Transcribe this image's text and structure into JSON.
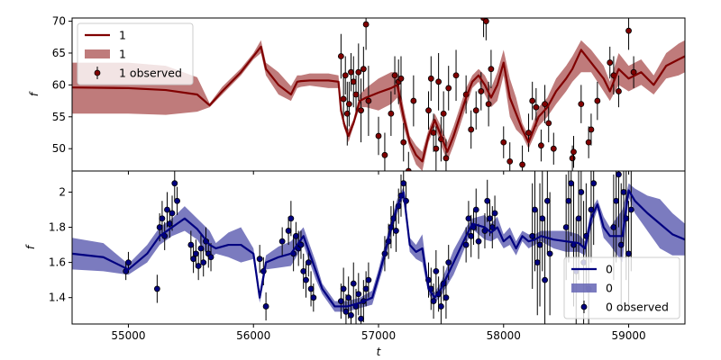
{
  "chart_data": [
    {
      "type": "line",
      "panel": "top",
      "xlabel": "",
      "ylabel": "f",
      "xlim": [
        54550,
        59450
      ],
      "ylim": [
        46.5,
        70.5
      ],
      "yticks": [
        50,
        55,
        60,
        65,
        70
      ],
      "show_xtick_labels": false,
      "legend_location": "upper left",
      "colors": {
        "line": "#800000",
        "band": "#b46464",
        "points": "#800000"
      },
      "legend": [
        {
          "kind": "line",
          "label": "1"
        },
        {
          "kind": "band",
          "label": "1"
        },
        {
          "kind": "errorbar",
          "label": "1 observed"
        }
      ],
      "model": {
        "x": [
          54550,
          55000,
          55300,
          55550,
          55650,
          55750,
          55900,
          56000,
          56060,
          56100,
          56200,
          56300,
          56350,
          56380,
          56450,
          56600,
          56680,
          56700,
          56730,
          56760,
          56800,
          56850,
          56900,
          57000,
          57100,
          57150,
          57200,
          57250,
          57300,
          57350,
          57400,
          57450,
          57500,
          57550,
          57600,
          57700,
          57750,
          57800,
          57850,
          57900,
          57950,
          58000,
          58050,
          58100,
          58150,
          58200,
          58280,
          58350,
          58420,
          58500,
          58550,
          58620,
          58700,
          58800,
          58850,
          58920,
          59000,
          59100,
          59200,
          59300,
          59400,
          59450
        ],
        "mean": [
          59.6,
          59.5,
          59.2,
          58.5,
          56.8,
          59.0,
          62.0,
          64.5,
          66.0,
          62.5,
          60.0,
          58.5,
          60.5,
          60.6,
          60.7,
          60.7,
          60.5,
          56.0,
          53.5,
          52.0,
          54.0,
          57.5,
          58.0,
          58.8,
          59.5,
          60.0,
          55.0,
          51.0,
          49.0,
          48.0,
          52.0,
          54.5,
          52.0,
          49.5,
          52.0,
          58.0,
          60.5,
          61.5,
          60.0,
          58.0,
          60.0,
          63.5,
          58.0,
          55.5,
          53.0,
          51.0,
          55.0,
          56.5,
          59.0,
          61.0,
          62.5,
          65.5,
          63.5,
          61.0,
          59.0,
          62.5,
          61.0,
          62.0,
          60.0,
          63.0,
          64.0,
          64.5
        ],
        "lower": [
          55.5,
          55.5,
          55.3,
          55.8,
          56.5,
          58.5,
          61.5,
          64.0,
          65.0,
          61.5,
          58.5,
          57.5,
          59.5,
          59.7,
          59.9,
          59.5,
          59.5,
          55.5,
          53.0,
          51.0,
          53.5,
          56.5,
          56.5,
          56.0,
          57.0,
          58.0,
          53.5,
          50.0,
          47.5,
          46.5,
          51.0,
          53.5,
          50.5,
          48.0,
          50.5,
          56.5,
          59.5,
          60.5,
          58.5,
          56.5,
          57.5,
          61.5,
          55.0,
          53.0,
          52.0,
          50.0,
          53.5,
          55.0,
          57.0,
          59.0,
          60.5,
          62.0,
          62.0,
          59.0,
          57.5,
          60.0,
          59.0,
          60.0,
          58.5,
          61.0,
          61.5,
          62.0
        ],
        "upper": [
          63.5,
          63.5,
          63.0,
          61.2,
          57.1,
          59.7,
          62.6,
          65.0,
          67.0,
          63.5,
          62.0,
          59.8,
          61.5,
          61.5,
          61.8,
          61.8,
          61.5,
          56.6,
          54.0,
          53.0,
          54.6,
          58.5,
          59.5,
          61.0,
          62.0,
          62.0,
          56.5,
          52.0,
          50.5,
          49.5,
          53.0,
          55.5,
          53.5,
          51.0,
          53.5,
          59.5,
          61.5,
          62.5,
          61.5,
          59.5,
          62.0,
          65.5,
          61.0,
          58.0,
          54.0,
          52.0,
          56.5,
          58.0,
          61.0,
          63.0,
          64.5,
          67.0,
          65.5,
          63.0,
          60.5,
          65.0,
          63.0,
          64.0,
          61.5,
          65.0,
          66.5,
          67.0
        ]
      },
      "observed": {
        "x": [
          56700,
          56720,
          56735,
          56750,
          56765,
          56780,
          56800,
          56820,
          56840,
          56860,
          56880,
          56900,
          56920,
          57000,
          57050,
          57100,
          57130,
          57160,
          57180,
          57200,
          57240,
          57280,
          57400,
          57420,
          57440,
          57460,
          57480,
          57500,
          57520,
          57540,
          57560,
          57620,
          57700,
          57740,
          57780,
          57820,
          57840,
          57860,
          57880,
          57900,
          58000,
          58050,
          58150,
          58200,
          58230,
          58260,
          58300,
          58330,
          58360,
          58400,
          58550,
          58560,
          58620,
          58680,
          58700,
          58750,
          58850,
          58880,
          58920,
          59000,
          59040
        ],
        "y": [
          64.5,
          57.8,
          61.5,
          55.5,
          57.0,
          62.0,
          60.5,
          58.5,
          62.0,
          56.0,
          62.5,
          69.5,
          57.5,
          52.0,
          49.0,
          55.5,
          61.5,
          60.5,
          61.0,
          51.0,
          46.5,
          57.5,
          56.0,
          61.0,
          52.5,
          50.0,
          60.5,
          51.5,
          55.5,
          48.5,
          59.5,
          61.5,
          58.5,
          53.0,
          56.0,
          59.0,
          70.5,
          70.0,
          57.0,
          62.5,
          51.0,
          48.0,
          47.5,
          52.5,
          57.5,
          56.5,
          50.5,
          57.0,
          54.0,
          50.0,
          48.5,
          49.5,
          57.0,
          51.0,
          53.0,
          57.5,
          63.5,
          61.5,
          59.0,
          68.5,
          62.0
        ],
        "err": [
          3.5,
          4.0,
          3.0,
          5.0,
          3.5,
          3.0,
          4.0,
          3.0,
          4.5,
          5.0,
          3.5,
          4.0,
          5.5,
          3.0,
          3.5,
          3.5,
          3.0,
          3.5,
          3.5,
          3.0,
          3.0,
          4.0,
          3.0,
          3.5,
          3.0,
          3.5,
          4.5,
          3.5,
          3.5,
          3.0,
          3.5,
          4.0,
          3.0,
          3.0,
          3.0,
          3.0,
          3.0,
          3.0,
          3.5,
          3.0,
          2.5,
          3.0,
          3.0,
          3.0,
          3.0,
          3.0,
          2.5,
          3.0,
          3.0,
          2.5,
          2.0,
          2.5,
          3.0,
          2.5,
          2.5,
          3.0,
          2.5,
          3.0,
          2.5,
          3.0,
          2.5
        ]
      }
    },
    {
      "type": "line",
      "panel": "bottom",
      "xlabel": "t",
      "ylabel": "f",
      "xlim": [
        54550,
        59450
      ],
      "ylim": [
        1.25,
        2.12
      ],
      "yticks": [
        1.4,
        1.6,
        1.8,
        2.0
      ],
      "xticks": [
        55000,
        56000,
        57000,
        58000,
        59000
      ],
      "xtick_labels": [
        "55000",
        "56000",
        "57000",
        "58000",
        "59000"
      ],
      "legend_location": "lower right",
      "colors": {
        "line": "#000080",
        "band": "#6464b4",
        "points": "#000080"
      },
      "legend": [
        {
          "kind": "line",
          "label": "0"
        },
        {
          "kind": "band",
          "label": "0"
        },
        {
          "kind": "errorbar",
          "label": "0 observed"
        }
      ],
      "model": {
        "x": [
          54550,
          54800,
          55000,
          55150,
          55250,
          55350,
          55450,
          55550,
          55650,
          55700,
          55800,
          55900,
          56000,
          56050,
          56100,
          56200,
          56300,
          56400,
          56500,
          56550,
          56650,
          56750,
          56850,
          56950,
          57000,
          57050,
          57100,
          57150,
          57200,
          57250,
          57300,
          57350,
          57400,
          57450,
          57500,
          57600,
          57700,
          57750,
          57850,
          57900,
          57950,
          58000,
          58050,
          58100,
          58150,
          58200,
          58250,
          58300,
          58400,
          58500,
          58600,
          58650,
          58700,
          58750,
          58800,
          58850,
          58950,
          59000,
          59050,
          59150,
          59250,
          59350,
          59450
        ],
        "mean": [
          1.65,
          1.63,
          1.56,
          1.65,
          1.75,
          1.8,
          1.85,
          1.79,
          1.7,
          1.68,
          1.7,
          1.7,
          1.65,
          1.4,
          1.6,
          1.63,
          1.65,
          1.75,
          1.55,
          1.45,
          1.35,
          1.35,
          1.37,
          1.4,
          1.52,
          1.65,
          1.8,
          1.92,
          2.0,
          1.7,
          1.66,
          1.68,
          1.45,
          1.4,
          1.45,
          1.6,
          1.75,
          1.82,
          1.8,
          1.77,
          1.8,
          1.72,
          1.75,
          1.68,
          1.75,
          1.72,
          1.73,
          1.75,
          1.73,
          1.72,
          1.71,
          1.68,
          1.85,
          1.93,
          1.8,
          1.75,
          1.75,
          2.01,
          1.95,
          1.88,
          1.82,
          1.76,
          1.73
        ],
        "lower": [
          1.56,
          1.55,
          1.53,
          1.6,
          1.7,
          1.75,
          1.78,
          1.73,
          1.62,
          1.65,
          1.63,
          1.6,
          1.62,
          1.37,
          1.56,
          1.57,
          1.58,
          1.7,
          1.5,
          1.42,
          1.32,
          1.32,
          1.34,
          1.36,
          1.48,
          1.6,
          1.76,
          1.88,
          1.97,
          1.66,
          1.62,
          1.6,
          1.42,
          1.37,
          1.41,
          1.53,
          1.7,
          1.79,
          1.73,
          1.72,
          1.74,
          1.68,
          1.7,
          1.64,
          1.72,
          1.68,
          1.7,
          1.72,
          1.68,
          1.66,
          1.66,
          1.64,
          1.8,
          1.9,
          1.74,
          1.7,
          1.6,
          1.97,
          1.88,
          1.78,
          1.68,
          1.64,
          1.64
        ],
        "upper": [
          1.74,
          1.71,
          1.59,
          1.7,
          1.8,
          1.85,
          1.92,
          1.85,
          1.78,
          1.71,
          1.77,
          1.8,
          1.68,
          1.43,
          1.64,
          1.69,
          1.72,
          1.8,
          1.6,
          1.48,
          1.38,
          1.38,
          1.4,
          1.44,
          1.56,
          1.7,
          1.84,
          1.96,
          2.03,
          1.74,
          1.7,
          1.76,
          1.48,
          1.43,
          1.49,
          1.67,
          1.8,
          1.85,
          1.87,
          1.82,
          1.86,
          1.76,
          1.8,
          1.72,
          1.78,
          1.76,
          1.76,
          1.78,
          1.78,
          1.78,
          1.76,
          1.72,
          1.9,
          1.96,
          1.86,
          1.8,
          1.9,
          2.05,
          2.02,
          1.98,
          1.96,
          1.88,
          1.82
        ]
      },
      "observed": {
        "x": [
          54980,
          55000,
          55230,
          55250,
          55270,
          55290,
          55310,
          55330,
          55350,
          55370,
          55390,
          55500,
          55520,
          55540,
          55560,
          55580,
          55600,
          55620,
          55640,
          55660,
          56050,
          56080,
          56100,
          56230,
          56280,
          56300,
          56320,
          56340,
          56360,
          56380,
          56400,
          56420,
          56440,
          56460,
          56480,
          56700,
          56720,
          56740,
          56760,
          56780,
          56800,
          56820,
          56840,
          56860,
          56880,
          56900,
          56920,
          57050,
          57080,
          57100,
          57120,
          57140,
          57160,
          57180,
          57200,
          57220,
          57400,
          57420,
          57440,
          57460,
          57480,
          57500,
          57520,
          57540,
          57560,
          57700,
          57720,
          57740,
          57760,
          57780,
          57800,
          57850,
          57870,
          57890,
          57910,
          57930,
          58230,
          58250,
          58270,
          58290,
          58310,
          58330,
          58350,
          58370,
          58500,
          58520,
          58540,
          58560,
          58580,
          58600,
          58620,
          58640,
          58660,
          58680,
          58700,
          58720,
          58880,
          58900,
          58920,
          58940,
          58960,
          58980,
          59000,
          59020
        ],
        "y": [
          1.55,
          1.6,
          1.45,
          1.8,
          1.85,
          1.75,
          1.9,
          1.82,
          1.88,
          2.05,
          1.95,
          1.7,
          1.62,
          1.65,
          1.58,
          1.68,
          1.6,
          1.72,
          1.65,
          1.63,
          1.62,
          1.55,
          1.35,
          1.72,
          1.78,
          1.85,
          1.65,
          1.75,
          1.68,
          1.7,
          1.55,
          1.5,
          1.6,
          1.45,
          1.4,
          1.38,
          1.45,
          1.32,
          1.4,
          1.3,
          1.48,
          1.35,
          1.42,
          1.28,
          1.38,
          1.45,
          1.5,
          1.65,
          1.72,
          1.8,
          1.85,
          1.78,
          1.92,
          1.98,
          2.05,
          1.95,
          1.5,
          1.45,
          1.38,
          1.55,
          1.42,
          1.35,
          1.48,
          1.4,
          1.6,
          1.7,
          1.85,
          1.75,
          1.8,
          1.9,
          1.72,
          1.78,
          1.95,
          1.85,
          1.8,
          1.88,
          1.75,
          1.9,
          1.6,
          1.7,
          1.85,
          1.5,
          1.95,
          1.65,
          1.8,
          1.95,
          2.05,
          1.7,
          1.55,
          1.85,
          2.0,
          1.6,
          1.75,
          1.45,
          1.9,
          2.05,
          1.8,
          1.95,
          2.1,
          1.7,
          2.0,
          1.85,
          1.65,
          1.9
        ],
        "err": [
          0.05,
          0.06,
          0.08,
          0.08,
          0.1,
          0.08,
          0.1,
          0.08,
          0.1,
          0.1,
          0.08,
          0.08,
          0.08,
          0.08,
          0.08,
          0.08,
          0.08,
          0.08,
          0.08,
          0.08,
          0.08,
          0.08,
          0.08,
          0.08,
          0.08,
          0.1,
          0.1,
          0.08,
          0.1,
          0.08,
          0.1,
          0.1,
          0.08,
          0.1,
          0.08,
          0.1,
          0.12,
          0.1,
          0.12,
          0.1,
          0.12,
          0.1,
          0.12,
          0.1,
          0.12,
          0.1,
          0.1,
          0.1,
          0.1,
          0.12,
          0.1,
          0.12,
          0.1,
          0.12,
          0.1,
          0.1,
          0.1,
          0.12,
          0.1,
          0.12,
          0.1,
          0.12,
          0.1,
          0.12,
          0.1,
          0.1,
          0.1,
          0.12,
          0.1,
          0.12,
          0.1,
          0.1,
          0.12,
          0.1,
          0.12,
          0.1,
          0.3,
          0.35,
          0.3,
          0.35,
          0.3,
          0.35,
          0.3,
          0.35,
          0.3,
          0.35,
          0.3,
          0.35,
          0.3,
          0.35,
          0.3,
          0.35,
          0.3,
          0.35,
          0.3,
          0.35,
          0.3,
          0.35,
          0.3,
          0.35,
          0.3,
          0.35,
          0.3,
          0.35
        ]
      }
    }
  ]
}
